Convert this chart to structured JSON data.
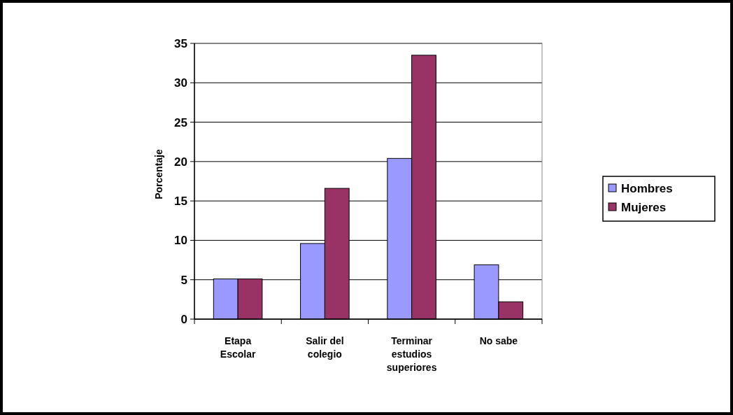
{
  "chart_data": {
    "type": "bar",
    "ylabel": "Porcentaje",
    "categories": [
      "Etapa Escolar",
      "Salir del colegio",
      "Terminar estudios superiores",
      "No sabe"
    ],
    "series": [
      {
        "name": "Hombres",
        "color": "#9999ff",
        "values": [
          5.1,
          9.6,
          20.4,
          6.9
        ]
      },
      {
        "name": "Mujeres",
        "color": "#993366",
        "values": [
          5.1,
          16.6,
          33.5,
          2.2
        ]
      }
    ],
    "ylim": [
      0,
      35
    ],
    "yticks": [
      0,
      5,
      10,
      15,
      20,
      25,
      30,
      35
    ],
    "grid": "y",
    "legend": "right"
  }
}
